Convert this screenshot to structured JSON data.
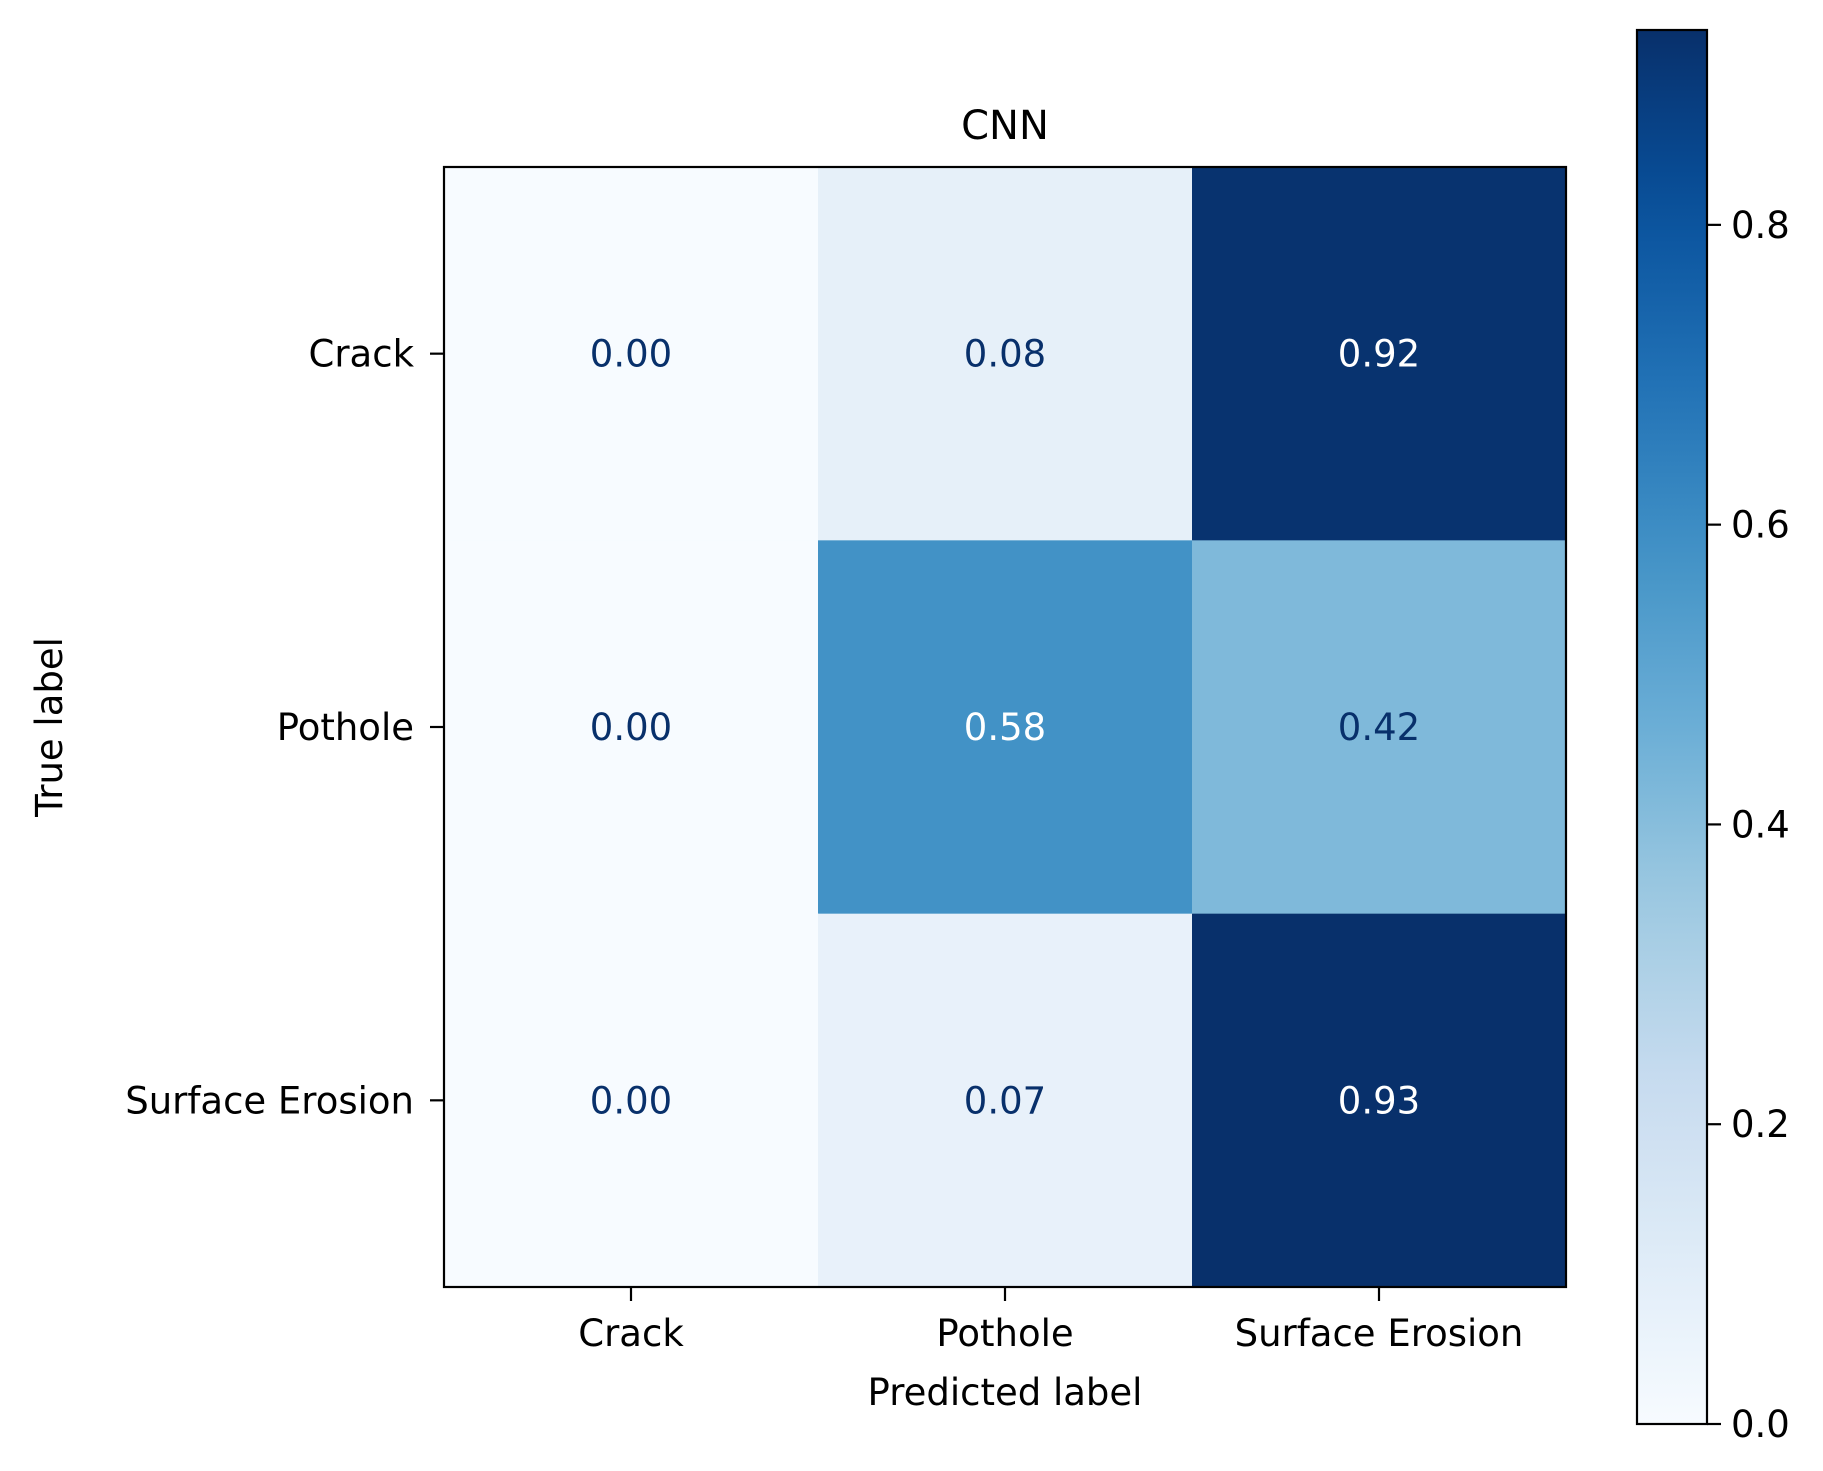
{
  "chart_data": {
    "type": "heatmap",
    "title": "CNN",
    "xlabel": "Predicted label",
    "ylabel": "True label",
    "x_categories": [
      "Crack",
      "Pothole",
      "Surface Erosion"
    ],
    "y_categories": [
      "Crack",
      "Pothole",
      "Surface Erosion"
    ],
    "values": [
      [
        0.0,
        0.08,
        0.92
      ],
      [
        0.0,
        0.58,
        0.42
      ],
      [
        0.0,
        0.07,
        0.93
      ]
    ],
    "value_format": "0.00",
    "colormap": "Blues",
    "colorbar": {
      "range": [
        0.0,
        0.93
      ],
      "ticks": [
        0.0,
        0.2,
        0.4,
        0.6,
        0.8
      ],
      "tick_labels": [
        "0.0",
        "0.2",
        "0.4",
        "0.6",
        "0.8"
      ]
    },
    "text_colors": {
      "dark": "#08306b",
      "light": "#ffffff"
    }
  }
}
